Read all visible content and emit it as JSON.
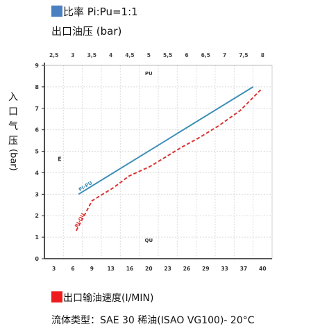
{
  "header": {
    "ratio_label": "比率 Pi:Pu=1:1",
    "ratio_color": "#4a7fc1",
    "y2_title": "出口油压 (bar)"
  },
  "footer": {
    "flow_label": "出口输油速度(I/MIN)",
    "flow_color": "#ee1c1c",
    "fluid_note": "流体类型：SAE 30 稀油(ISAO VG100)- 20°C"
  },
  "chart_data": {
    "type": "line",
    "ylabel": "入口气压",
    "ylabel_unit": "(bar)",
    "y2label": "出口油压 (bar)",
    "xlabel": "出口输油速度(I/MIN)",
    "ylim": [
      0,
      9
    ],
    "yticks": [
      "0",
      "1",
      "2",
      "3",
      "4",
      "5",
      "6",
      "7",
      "8",
      "9"
    ],
    "grid": true,
    "x_bottom_label": "QU",
    "x_top_label": "PU",
    "y_marker_label": "E",
    "top_axis": {
      "range": [
        2.5,
        8.5
      ],
      "ticks": [
        "2,5",
        "3",
        "3,5",
        "4",
        "4,5",
        "5",
        "5,5",
        "6",
        "6,5",
        "7",
        "7,5",
        "8"
      ]
    },
    "bottom_axis": {
      "range": [
        0,
        43
      ],
      "ticks": [
        "3",
        "6",
        "9",
        "13",
        "16",
        "20",
        "23",
        "26",
        "29",
        "33",
        "37",
        "40"
      ]
    },
    "series": [
      {
        "name": "PI-PU",
        "axis": "top",
        "color": "#3d8fb5",
        "dash": false,
        "points": [
          [
            3.4,
            3.0
          ],
          [
            8.0,
            8.0
          ]
        ]
      },
      {
        "name": "PI-QU",
        "axis": "bottom",
        "color": "#dd3333",
        "dash": true,
        "points": [
          [
            6.0,
            1.3
          ],
          [
            9.0,
            2.7
          ],
          [
            13.0,
            3.3
          ],
          [
            16.0,
            3.85
          ],
          [
            20.0,
            4.3
          ],
          [
            23.0,
            4.75
          ],
          [
            26.0,
            5.2
          ],
          [
            29.0,
            5.6
          ],
          [
            33.0,
            6.2
          ],
          [
            37.0,
            6.9
          ],
          [
            41.0,
            7.9
          ]
        ]
      }
    ]
  }
}
